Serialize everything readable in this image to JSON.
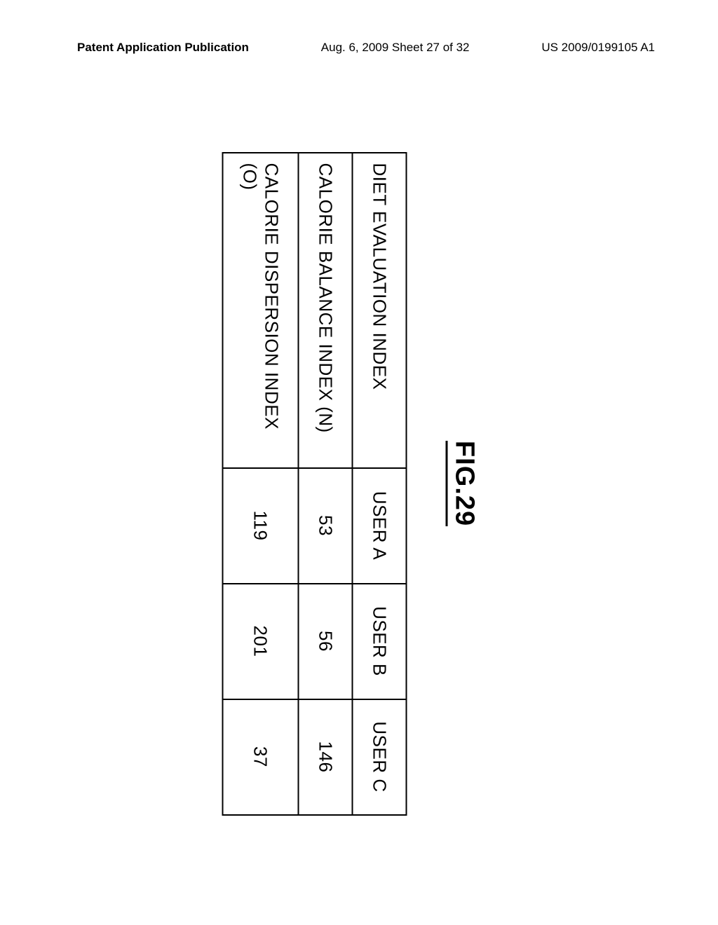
{
  "header": {
    "left": "Patent Application Publication",
    "center": "Aug. 6, 2009  Sheet 27 of 32",
    "right": "US 2009/0199105 A1"
  },
  "figure": {
    "label": "FIG.29",
    "label_fontsize": 38,
    "rotation_deg": 90
  },
  "table": {
    "type": "table",
    "background_color": "#ffffff",
    "border_color": "#000000",
    "border_width": 2,
    "row_header_text": "DIET EVALUATION INDEX",
    "columns": [
      "USER A",
      "USER B",
      "USER C"
    ],
    "column_width_label": 450,
    "column_width_user": 165,
    "cell_fontsize": 26,
    "text_color": "#000000",
    "rows": [
      {
        "label": "CALORIE BALANCE INDEX (N)",
        "values": [
          "53",
          "56",
          "146"
        ]
      },
      {
        "label": "CALORIE DISPERSION INDEX (O)",
        "values": [
          "119",
          "201",
          "37"
        ]
      }
    ]
  }
}
